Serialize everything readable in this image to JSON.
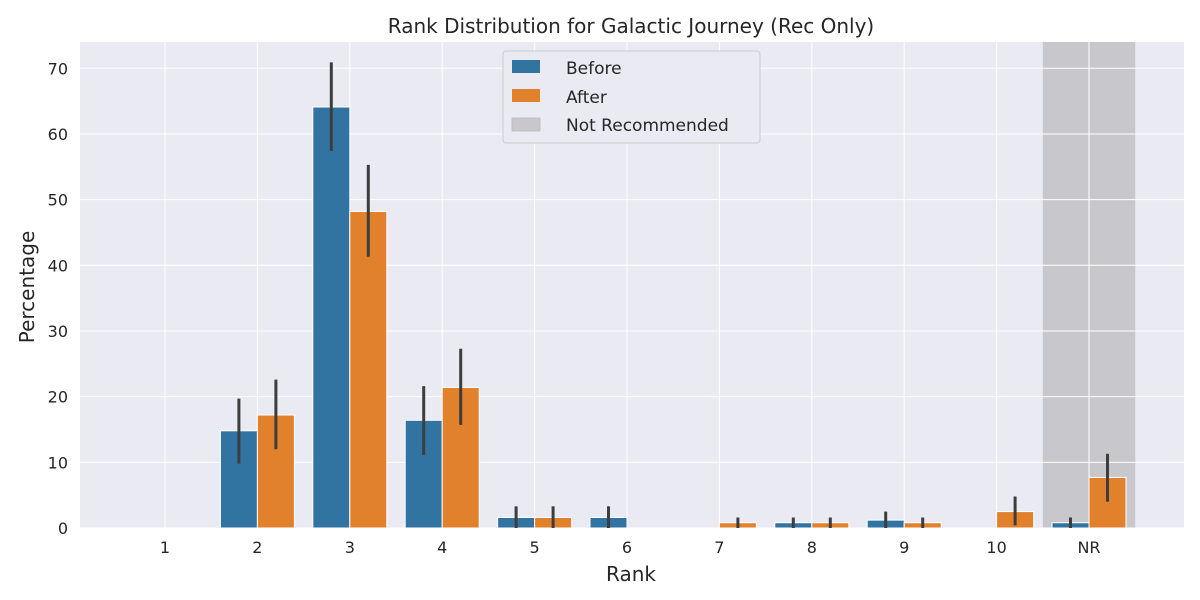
{
  "chart_data": {
    "type": "bar",
    "title": "Rank Distribution for Galactic Journey (Rec Only)",
    "xlabel": "Rank",
    "ylabel": "Percentage",
    "categories": [
      "1",
      "2",
      "3",
      "4",
      "5",
      "6",
      "7",
      "8",
      "9",
      "10",
      "NR"
    ],
    "ylim": [
      0,
      74
    ],
    "yticks": [
      0,
      10,
      20,
      30,
      40,
      50,
      60,
      70
    ],
    "grid": true,
    "legend_position": "top-center",
    "series": [
      {
        "name": "Before",
        "color": "#3274a1",
        "values": [
          0,
          14.8,
          64.1,
          16.4,
          1.6,
          1.6,
          0,
          0.8,
          1.2,
          0,
          0.8
        ],
        "error_low": [
          0,
          9.8,
          57.4,
          11.1,
          0,
          0,
          0,
          0,
          0,
          0,
          0
        ],
        "error_high": [
          0,
          19.7,
          70.9,
          21.6,
          3.3,
          3.3,
          0,
          1.6,
          2.5,
          0,
          1.6
        ]
      },
      {
        "name": "After",
        "color": "#e1812c",
        "values": [
          0,
          17.2,
          48.2,
          21.4,
          1.6,
          0,
          0.8,
          0.8,
          0.8,
          2.5,
          7.7
        ],
        "error_low": [
          0,
          12.0,
          41.3,
          15.7,
          0,
          0,
          0,
          0,
          0,
          0.4,
          4.0
        ],
        "error_high": [
          0,
          22.6,
          55.3,
          27.3,
          3.3,
          0,
          1.6,
          1.6,
          1.6,
          4.8,
          11.3
        ]
      }
    ],
    "shaded_region": {
      "label": "Not Recommended",
      "category": "NR",
      "color": "#c8c8cc"
    },
    "legend": [
      "Before",
      "After",
      "Not Recommended"
    ]
  }
}
